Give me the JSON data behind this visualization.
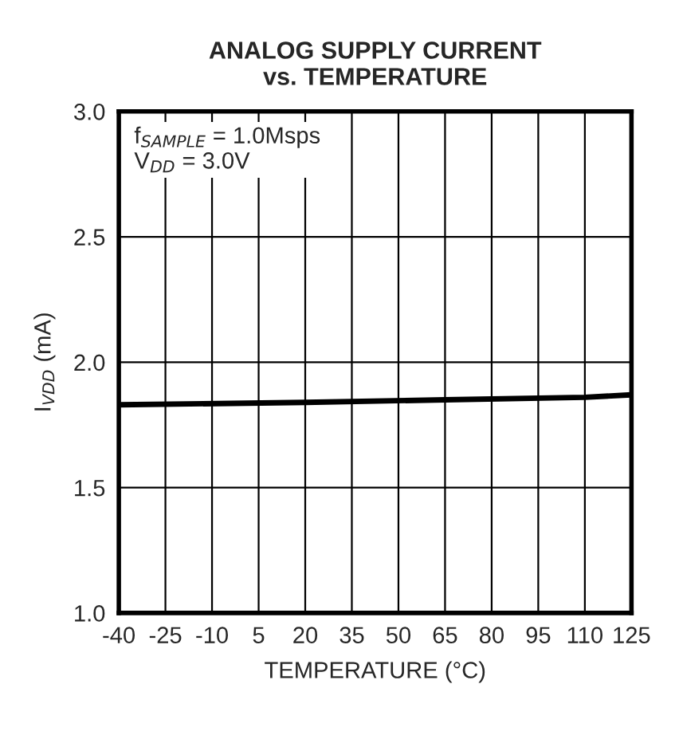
{
  "chart_data": {
    "type": "line",
    "title": "ANALOG SUPPLY CURRENT\nvs. TEMPERATURE",
    "xlabel": "TEMPERATURE (°C)",
    "ylabel": "I$_{VDD}$ (mA)",
    "annotations": [
      "f$_{SAMPLE}$ = 1.0Msps\nV$_{DD}$ = 3.0V"
    ],
    "series": [
      {
        "color": "#000000",
        "x": [
          -40,
          20,
          65,
          110,
          125
        ],
        "values": [
          1.83,
          1.84,
          1.85,
          1.86,
          1.87
        ]
      }
    ],
    "xlim": [
      -40,
      125
    ],
    "xticks": [
      -40,
      -25,
      -10,
      5,
      20,
      35,
      50,
      65,
      80,
      95,
      110,
      125
    ],
    "ylim": [
      1.0,
      3.0
    ],
    "yticks": [
      {
        "value": 1.0,
        "label": "1.0"
      },
      {
        "value": 1.5,
        "label": "1.5"
      },
      {
        "value": 2.0,
        "label": "2.0"
      },
      {
        "value": 2.5,
        "label": "2.5"
      },
      {
        "value": 3.0,
        "label": "3.0"
      }
    ],
    "grid": true,
    "legend": false,
    "marker": "none",
    "line_style": "solid"
  }
}
